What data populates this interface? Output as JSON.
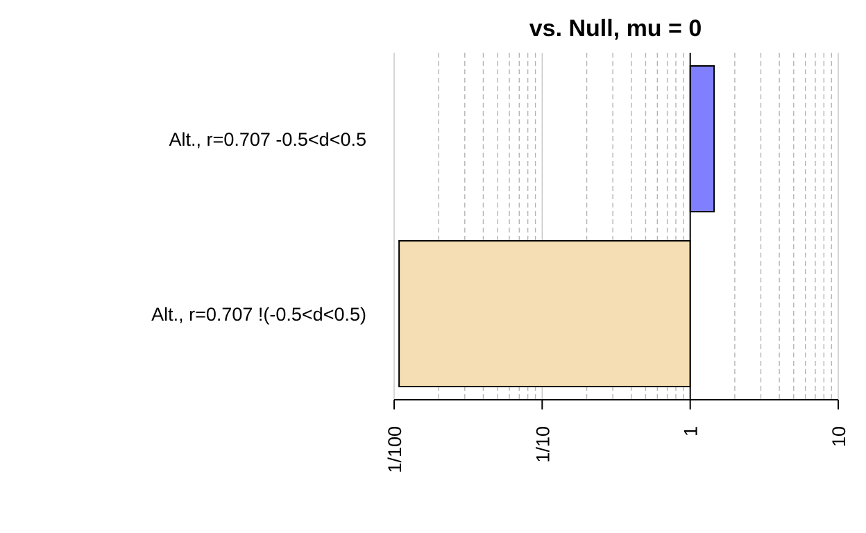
{
  "chart_data": {
    "type": "bar",
    "orientation": "horizontal",
    "title": "vs. Null, mu = 0",
    "xlabel": "",
    "ylabel": "",
    "x_scale": "log",
    "xlim": [
      0.01,
      10
    ],
    "baseline": 1,
    "categories": [
      "Alt., r=0.707 -0.5<d<0.5",
      "Alt., r=0.707 !(-0.5<d<0.5)"
    ],
    "values": [
      1.45,
      0.0108
    ],
    "colors": [
      "#8080ff",
      "#f5deb3"
    ],
    "x_ticks": [
      {
        "value": 0.01,
        "label": "1/100"
      },
      {
        "value": 0.1,
        "label": "1/10"
      },
      {
        "value": 1,
        "label": "1"
      },
      {
        "value": 10,
        "label": "10"
      }
    ],
    "grid": true
  }
}
